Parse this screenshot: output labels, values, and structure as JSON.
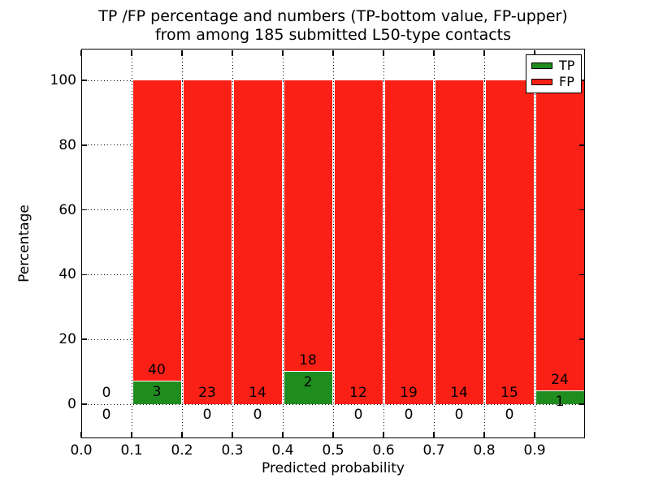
{
  "title": {
    "line1": "TP /FP percentage and numbers (TP-bottom value, FP-upper)",
    "line2": "from among 185 submitted L50-type contacts"
  },
  "axes": {
    "xlabel": "Predicted probability",
    "ylabel": "Percentage",
    "x_tick_labels": [
      "0.0",
      "0.1",
      "0.2",
      "0.3",
      "0.4",
      "0.5",
      "0.6",
      "0.7",
      "0.8",
      "0.9"
    ],
    "x_tick_values": [
      0.0,
      0.1,
      0.2,
      0.3,
      0.4,
      0.5,
      0.6,
      0.7,
      0.8,
      0.9
    ],
    "y_tick_labels": [
      "0",
      "20",
      "40",
      "60",
      "80",
      "100"
    ],
    "y_tick_values": [
      0,
      20,
      40,
      60,
      80,
      100
    ],
    "xlim": [
      0.0,
      1.0
    ],
    "ylim": [
      -10.5,
      110
    ],
    "grid": true,
    "grid_style": "dotted"
  },
  "legend": {
    "position": "upper right",
    "items": [
      {
        "label": "TP",
        "color": "#1f8c1f"
      },
      {
        "label": "FP",
        "color": "#fb2015"
      }
    ]
  },
  "colors": {
    "tp": "#1f8c1f",
    "fp": "#fb2015",
    "background": "#ffffff",
    "frame": "#000000",
    "grid": "#000000",
    "text": "#000000",
    "bar_edge": "#ffffff"
  },
  "chart_data": {
    "type": "bar",
    "stacked": true,
    "normalized": "each bar scaled to 100%",
    "title": "TP /FP percentage and numbers (TP-bottom value, FP-upper) from among 185 submitted L50-type contacts",
    "xlabel": "Predicted probability",
    "ylabel": "Percentage",
    "total_contacts": 185,
    "bin_width": 0.1,
    "categories": [
      "0.0-0.1",
      "0.1-0.2",
      "0.2-0.3",
      "0.3-0.4",
      "0.4-0.5",
      "0.5-0.6",
      "0.6-0.7",
      "0.7-0.8",
      "0.8-0.9",
      "0.9-1.0"
    ],
    "bin_starts": [
      0.0,
      0.1,
      0.2,
      0.3,
      0.4,
      0.5,
      0.6,
      0.7,
      0.8,
      0.9
    ],
    "series": [
      {
        "name": "TP",
        "color": "#1f8c1f",
        "values": [
          0,
          3,
          0,
          0,
          2,
          0,
          0,
          0,
          0,
          1
        ]
      },
      {
        "name": "FP",
        "color": "#fb2015",
        "values": [
          0,
          40,
          23,
          14,
          18,
          12,
          19,
          14,
          15,
          24
        ]
      }
    ],
    "tp_percent_heights": [
      0,
      6.98,
      0,
      0,
      10.0,
      0,
      0,
      0,
      0,
      4.0
    ],
    "bar_total_percent": 100,
    "label_rule": "FP count printed above TP segment top, TP count printed below TP segment top"
  }
}
